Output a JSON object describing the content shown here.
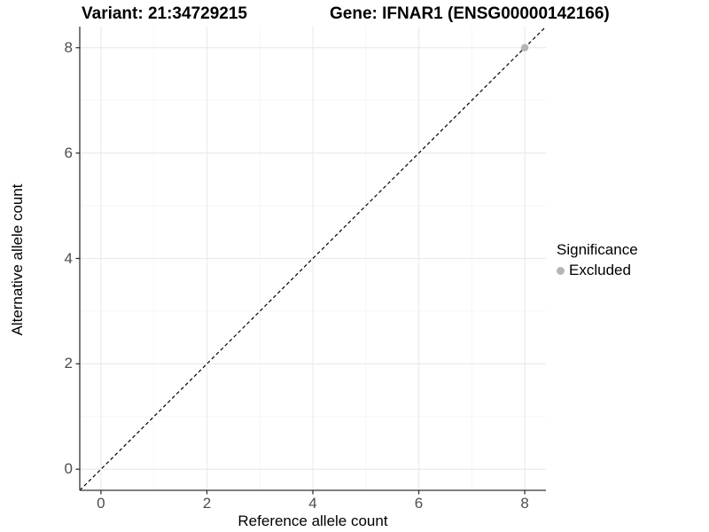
{
  "chart_data": {
    "type": "scatter",
    "title_left": "Variant: 21:34729215",
    "title_right": "Gene: IFNAR1 (ENSG00000142166)",
    "xlabel": "Reference allele count",
    "ylabel": "Alternative allele count",
    "xlim": [
      -0.4,
      8.4
    ],
    "ylim": [
      -0.4,
      8.4
    ],
    "xticks": [
      0,
      2,
      4,
      6,
      8
    ],
    "yticks": [
      0,
      2,
      4,
      6,
      8
    ],
    "x_minor_ticks": [
      1,
      3,
      5,
      7
    ],
    "y_minor_ticks": [
      1,
      3,
      5,
      7
    ],
    "grid": "on",
    "reference_line": {
      "slope": 1,
      "intercept": 0,
      "style": "dashed",
      "color": "#000000"
    },
    "series": [
      {
        "name": "Excluded",
        "color": "#b5b5b5",
        "points": [
          [
            8,
            8
          ]
        ]
      }
    ],
    "legend": {
      "title": "Significance",
      "position": "right",
      "items": [
        {
          "label": "Excluded",
          "color": "#b5b5b5"
        }
      ]
    }
  },
  "styles": {
    "grid_major_color": "#ebebeb",
    "grid_minor_color": "#f5f5f5",
    "axis_line_color": "#333333",
    "tick_text_color": "#4d4d4d",
    "background_color": "#ffffff"
  }
}
